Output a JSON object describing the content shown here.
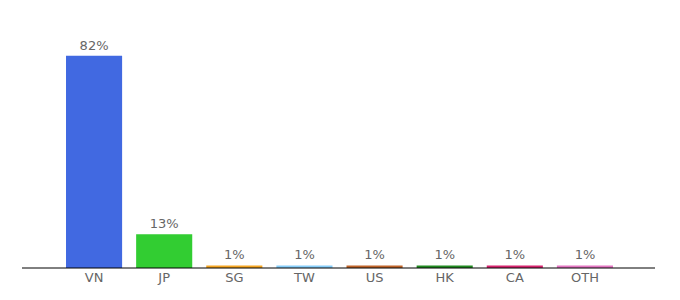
{
  "chart_data": {
    "type": "bar",
    "categories": [
      "VN",
      "JP",
      "SG",
      "TW",
      "US",
      "HK",
      "CA",
      "OTH"
    ],
    "values": [
      82,
      13,
      1,
      1,
      1,
      1,
      1,
      1
    ],
    "value_labels": [
      "82%",
      "13%",
      "1%",
      "1%",
      "1%",
      "1%",
      "1%",
      "1%"
    ],
    "colors": [
      "#4169e1",
      "#32cd32",
      "#f5a623",
      "#87cefa",
      "#c0652a",
      "#228b22",
      "#d6246e",
      "#e377c2"
    ],
    "ylim": [
      0,
      90
    ],
    "grid": false,
    "data_labels": true,
    "tick_labels": "x"
  }
}
